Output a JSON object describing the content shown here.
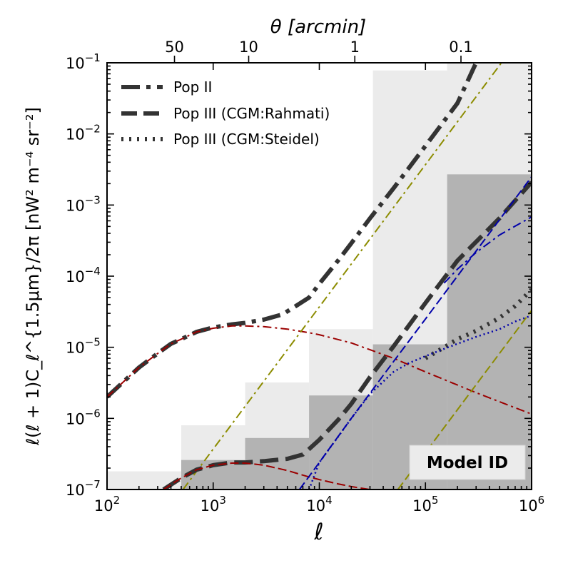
{
  "chart_data": {
    "type": "line",
    "x_scale": "log",
    "y_scale": "log",
    "xlim": [
      100,
      1000000
    ],
    "ylim": [
      1e-07,
      0.1
    ],
    "xlabel": "ℓ",
    "ylabel": "ℓ(ℓ + 1)C_ℓ^{1.5μm}/2π [nW² m⁻⁴ sr⁻²]",
    "top_axis_label": "θ [arcmin]",
    "x_ticks": [
      {
        "value": 100,
        "base": "10",
        "exp": "2"
      },
      {
        "value": 1000,
        "base": "10",
        "exp": "3"
      },
      {
        "value": 10000,
        "base": "10",
        "exp": "4"
      },
      {
        "value": 100000,
        "base": "10",
        "exp": "5"
      },
      {
        "value": 1000000,
        "base": "10",
        "exp": "6"
      }
    ],
    "y_ticks": [
      {
        "value": 1e-07,
        "base": "10",
        "exp": "−7"
      },
      {
        "value": 1e-06,
        "base": "10",
        "exp": "−6"
      },
      {
        "value": 1e-05,
        "base": "10",
        "exp": "−5"
      },
      {
        "value": 0.0001,
        "base": "10",
        "exp": "−4"
      },
      {
        "value": 0.001,
        "base": "10",
        "exp": "−3"
      },
      {
        "value": 0.01,
        "base": "10",
        "exp": "−2"
      },
      {
        "value": 0.1,
        "base": "10",
        "exp": "−1"
      }
    ],
    "top_ticks": [
      {
        "ell": 432,
        "label": "50"
      },
      {
        "ell": 2160,
        "label": "10"
      },
      {
        "ell": 21600,
        "label": "1"
      },
      {
        "ell": 216000,
        "label": "0.1"
      }
    ],
    "grid": false,
    "legend_position": "top-left",
    "legend": [
      {
        "label": "Pop II",
        "style": "dashdot"
      },
      {
        "label": "Pop III (CGM:Rahmati)",
        "style": "dashed"
      },
      {
        "label": "Pop III (CGM:Steidel)",
        "style": "dotted"
      }
    ],
    "annotation": "Model ID",
    "sensitivity_bands": [
      {
        "color": "#ebebeb",
        "steps": [
          {
            "x0": 100,
            "x1": 500,
            "y": 1.8e-07
          },
          {
            "x0": 500,
            "x1": 2000,
            "y": 8e-07
          },
          {
            "x0": 2000,
            "x1": 8000,
            "y": 3.2e-06
          },
          {
            "x0": 8000,
            "x1": 32000,
            "y": 1.8e-05
          },
          {
            "x0": 32000,
            "x1": 160000,
            "y": 0.078
          },
          {
            "x0": 160000,
            "x1": 1000000,
            "y": 0.1
          }
        ]
      },
      {
        "color": "#b3b3b3",
        "steps": [
          {
            "x0": 500,
            "x1": 2000,
            "y": 2.6e-07
          },
          {
            "x0": 2000,
            "x1": 8000,
            "y": 5.3e-07
          },
          {
            "x0": 8000,
            "x1": 32000,
            "y": 2.1e-06
          },
          {
            "x0": 32000,
            "x1": 160000,
            "y": 1.1e-05
          },
          {
            "x0": 160000,
            "x1": 1000000,
            "y": 0.0027
          }
        ]
      }
    ],
    "series": [
      {
        "role": "popII-total",
        "color": "#333333",
        "dash": "26,9,6,9",
        "width": 6,
        "x": [
          100,
          150,
          200,
          300,
          400,
          500,
          700,
          1000,
          1500,
          2000,
          3000,
          4500,
          6000,
          8000,
          10000,
          15000,
          20000,
          30000,
          50000,
          100000,
          200000,
          300000
        ],
        "y": [
          2e-06,
          3.5e-06,
          5.2e-06,
          8.2e-06,
          1.12e-05,
          1.3e-05,
          1.65e-05,
          1.9e-05,
          2.1e-05,
          2.2e-05,
          2.45e-05,
          2.9e-05,
          3.8e-05,
          5e-05,
          7.8e-05,
          0.000165,
          0.00029,
          0.00065,
          0.00172,
          0.0068,
          0.027,
          0.1
        ]
      },
      {
        "role": "popII-clustering",
        "color": "#9b0000",
        "dash": "12,5,3,5",
        "width": 2,
        "x": [
          100,
          150,
          200,
          300,
          400,
          500,
          700,
          1000,
          1500,
          2000,
          3000,
          5000,
          8000,
          10000,
          20000,
          50000,
          100000,
          300000,
          1000000
        ],
        "y": [
          2e-06,
          3.5e-06,
          5.2e-06,
          8.2e-06,
          1.12e-05,
          1.3e-05,
          1.65e-05,
          1.85e-05,
          2e-05,
          2e-05,
          1.95e-05,
          1.8e-05,
          1.6e-05,
          1.5e-05,
          1.15e-05,
          7e-06,
          4.5e-06,
          2.3e-06,
          1.15e-06
        ]
      },
      {
        "role": "popII-shot",
        "color": "#8c8c00",
        "dash": "12,5,3,5",
        "width": 2,
        "x": [
          520,
          1000000
        ],
        "y": [
          1e-07,
          0.37
        ]
      },
      {
        "role": "popIII-rahmati-total",
        "color": "#333333",
        "dash": "26,10",
        "width": 6,
        "x": [
          340,
          500,
          700,
          1000,
          1500,
          2000,
          3000,
          5000,
          7000,
          8000,
          10000,
          15000,
          20000,
          30000,
          50000,
          100000,
          200000,
          500000,
          1000000
        ],
        "y": [
          1e-07,
          1.45e-07,
          1.9e-07,
          2.2e-07,
          2.4e-07,
          2.4e-07,
          2.5e-07,
          2.7e-07,
          3.1e-07,
          3.7e-07,
          5e-07,
          9.5e-07,
          1.6e-06,
          3.8e-06,
          1.03e-05,
          4.2e-05,
          0.000165,
          0.000655,
          0.0021
        ]
      },
      {
        "role": "popIII-clustering",
        "color": "#9b0000",
        "dash": "12,5",
        "width": 2,
        "x": [
          340,
          500,
          700,
          1000,
          1500,
          2000,
          3000,
          5000,
          8000,
          10000,
          15000,
          20000,
          30000
        ],
        "y": [
          1e-07,
          1.45e-07,
          1.9e-07,
          2.2e-07,
          2.35e-07,
          2.35e-07,
          2.2e-07,
          1.85e-07,
          1.5e-07,
          1.38e-07,
          1.2e-07,
          1.1e-07,
          1e-07
        ]
      },
      {
        "role": "popIII-rahmati-shot",
        "color": "#0000aa",
        "dash": "12,5",
        "width": 2,
        "x": [
          6500,
          10000,
          20000,
          50000,
          100000,
          200000,
          500000,
          1000000
        ],
        "y": [
          1e-07,
          2.4e-07,
          1e-06,
          6.3e-06,
          2.5e-05,
          0.0001,
          0.000625,
          0.0025
        ]
      },
      {
        "role": "popIII-rahmati-shot-turnover",
        "color": "#0000aa",
        "dash": "12,5,3,5",
        "width": 2,
        "x": [
          150000,
          200000,
          300000,
          500000,
          700000,
          1000000
        ],
        "y": [
          8e-05,
          0.000125,
          0.000215,
          0.00038,
          0.000505,
          0.00068
        ]
      },
      {
        "role": "popIII-steidel-total",
        "color": "#333333",
        "dash": "3,8",
        "width": 6,
        "x": [
          100000,
          150000,
          200000,
          300000,
          500000,
          700000,
          1000000
        ],
        "y": [
          7e-06,
          1e-05,
          1.3e-05,
          1.7e-05,
          2.6e-05,
          3.8e-05,
          6.5e-05
        ]
      },
      {
        "role": "popIII-steidel-shot",
        "color": "#0000aa",
        "dash": "2,4",
        "width": 2.5,
        "x": [
          8000,
          10000,
          15000,
          20000,
          30000,
          50000,
          70000,
          100000,
          150000,
          200000,
          300000,
          500000,
          700000,
          1000000
        ],
        "y": [
          1e-07,
          2.4e-07,
          5.5e-07,
          1e-06,
          2.2e-06,
          4.5e-06,
          6e-06,
          7.5e-06,
          9.5e-06,
          1.12e-05,
          1.4e-05,
          1.8e-05,
          2.3e-05,
          2.8e-05
        ]
      },
      {
        "role": "popIII-steidel-clustering",
        "color": "#8c8c00",
        "dash": "12,5",
        "width": 2,
        "x": [
          55000,
          1000000
        ],
        "y": [
          1e-07,
          3.3e-05
        ]
      }
    ]
  }
}
